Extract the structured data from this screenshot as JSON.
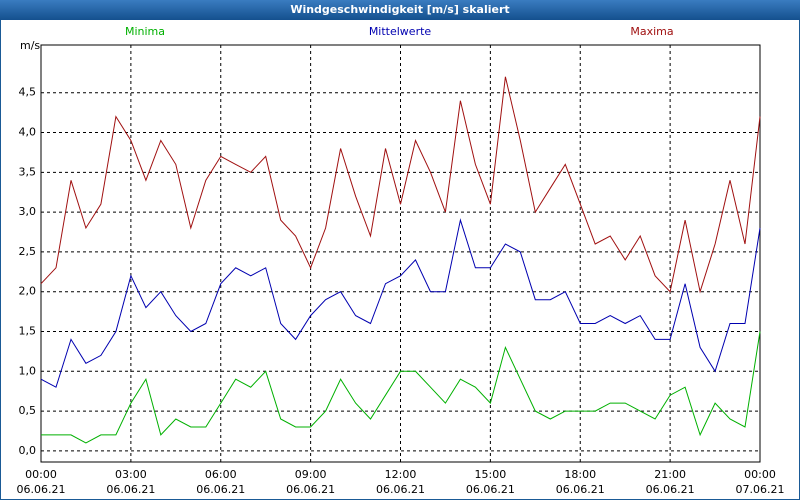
{
  "chart_data": {
    "type": "line",
    "title": "Windgeschwindigkeit [m/s] skaliert",
    "y_label": "m/s",
    "x": [
      0,
      0.5,
      1,
      1.5,
      2,
      2.5,
      3,
      3.5,
      4,
      4.5,
      5,
      5.5,
      6,
      6.5,
      7,
      7.5,
      8,
      8.5,
      9,
      9.5,
      10,
      10.5,
      11,
      11.5,
      12,
      12.5,
      13,
      13.5,
      14,
      14.5,
      15,
      15.5,
      16,
      16.5,
      17,
      17.5,
      18,
      18.5,
      19,
      19.5,
      20,
      20.5,
      21,
      21.5,
      22,
      22.5,
      23,
      23.5,
      24
    ],
    "series": [
      {
        "name": "Minima",
        "color": "#00b000",
        "values": [
          0.2,
          0.2,
          0.2,
          0.1,
          0.2,
          0.2,
          0.6,
          0.9,
          0.2,
          0.4,
          0.3,
          0.3,
          0.6,
          0.9,
          0.8,
          1.0,
          0.4,
          0.3,
          0.3,
          0.5,
          0.9,
          0.6,
          0.4,
          0.7,
          1.0,
          1.0,
          0.8,
          0.6,
          0.9,
          0.8,
          0.6,
          1.3,
          0.9,
          0.5,
          0.4,
          0.5,
          0.5,
          0.5,
          0.6,
          0.6,
          0.5,
          0.4,
          0.7,
          0.8,
          0.2,
          0.6,
          0.4,
          0.3,
          1.5
        ]
      },
      {
        "name": "Mittelwerte",
        "color": "#0000b0",
        "values": [
          0.9,
          0.8,
          1.4,
          1.1,
          1.2,
          1.5,
          2.2,
          1.8,
          2.0,
          1.7,
          1.5,
          1.6,
          2.1,
          2.3,
          2.2,
          2.3,
          1.6,
          1.4,
          1.7,
          1.9,
          2.0,
          1.7,
          1.6,
          2.1,
          2.2,
          2.4,
          2.0,
          2.0,
          2.9,
          2.3,
          2.3,
          2.6,
          2.5,
          1.9,
          1.9,
          2.0,
          1.6,
          1.6,
          1.7,
          1.6,
          1.7,
          1.4,
          1.4,
          2.1,
          1.3,
          1.0,
          1.6,
          1.6,
          2.8
        ]
      },
      {
        "name": "Maxima",
        "color": "#a01010",
        "values": [
          2.1,
          2.3,
          3.4,
          2.8,
          3.1,
          4.2,
          3.9,
          3.4,
          3.9,
          3.6,
          2.8,
          3.4,
          3.7,
          3.6,
          3.5,
          3.7,
          2.9,
          2.7,
          2.3,
          2.8,
          3.8,
          3.2,
          2.7,
          3.8,
          3.1,
          3.9,
          3.5,
          3.0,
          4.4,
          3.6,
          3.1,
          4.7,
          3.9,
          3.0,
          3.3,
          3.6,
          3.1,
          2.6,
          2.7,
          2.4,
          2.7,
          2.2,
          2.0,
          2.9,
          2.0,
          2.6,
          3.4,
          2.6,
          4.2
        ]
      }
    ],
    "xlim": [
      0,
      24
    ],
    "xticks": [
      {
        "value": 0,
        "label": "00:00"
      },
      {
        "value": 3,
        "label": "03:00"
      },
      {
        "value": 6,
        "label": "06:00"
      },
      {
        "value": 9,
        "label": "09:00"
      },
      {
        "value": 12,
        "label": "12:00"
      },
      {
        "value": 15,
        "label": "15:00"
      },
      {
        "value": 18,
        "label": "18:00"
      },
      {
        "value": 21,
        "label": "21:00"
      },
      {
        "value": 24,
        "label": "00:00"
      }
    ],
    "xtick_dates": [
      "06.06.21",
      "06.06.21",
      "06.06.21",
      "06.06.21",
      "06.06.21",
      "06.06.21",
      "06.06.21",
      "06.06.21",
      "07.06.21"
    ],
    "ylim": [
      -0.14,
      5.1
    ],
    "yticks": [
      {
        "value": 0,
        "label": "0,0"
      },
      {
        "value": 0.5,
        "label": "0,5"
      },
      {
        "value": 1,
        "label": "1,0"
      },
      {
        "value": 1.5,
        "label": "1,5"
      },
      {
        "value": 2,
        "label": "2,0"
      },
      {
        "value": 2.5,
        "label": "2,5"
      },
      {
        "value": 3,
        "label": "3,0"
      },
      {
        "value": 3.5,
        "label": "3,5"
      },
      {
        "value": 4,
        "label": "4,0"
      },
      {
        "value": 4.5,
        "label": "4,5"
      }
    ],
    "grid": true
  }
}
